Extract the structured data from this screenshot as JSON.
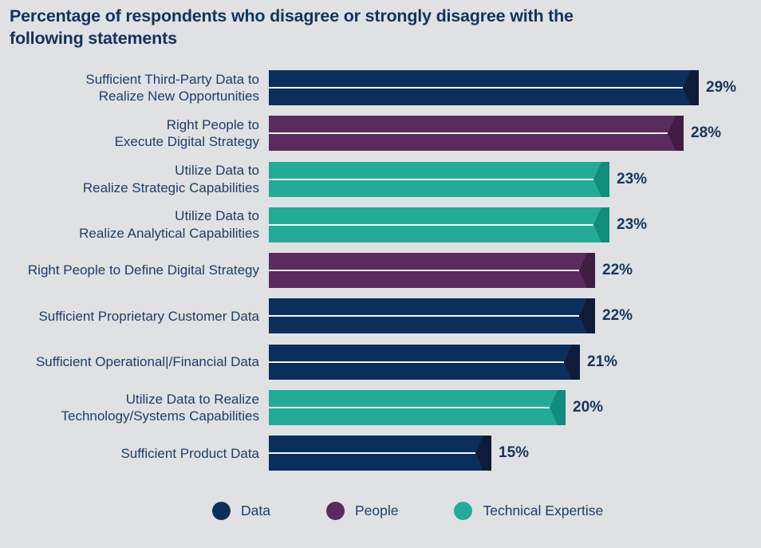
{
  "title": {
    "full": "Percentage of respondents who disagree or strongly disagree with the following statements",
    "line1": "Percentage of respondents who disagree or strongly disagree with the",
    "line2": "following statements"
  },
  "colors": {
    "background": "#dfe1e2",
    "title_text": "#13325f",
    "category_label_text": "#1e3d6d",
    "value_label_text": "#16355f",
    "bar_midline": "#f4f6f8",
    "data_navy": "#0b2f5b",
    "data_navy_cap": "#0e1c3a",
    "people_purple": "#5b2a5e",
    "people_purple_cap": "#411c45",
    "technical_teal": "#23ab98",
    "technical_teal_cap": "#108d7c"
  },
  "chart_data": {
    "type": "bar",
    "orientation": "horizontal",
    "title": "Percentage of respondents who disagree or strongly disagree with the following statements",
    "xlabel": "",
    "ylabel": "",
    "xlim": [
      0,
      29
    ],
    "grid": false,
    "value_suffix": "%",
    "legend_position": "bottom",
    "bars": [
      {
        "label_lines": [
          "Sufficient Third-Party Data to",
          "Realize New Opportunities"
        ],
        "value": 29,
        "group": "Data"
      },
      {
        "label_lines": [
          "Right People to",
          "Execute Digital Strategy"
        ],
        "value": 28,
        "group": "People"
      },
      {
        "label_lines": [
          "Utilize Data to",
          "Realize Strategic Capabilities"
        ],
        "value": 23,
        "group": "Technical Expertise"
      },
      {
        "label_lines": [
          "Utilize Data to",
          "Realize Analytical Capabilities"
        ],
        "value": 23,
        "group": "Technical Expertise"
      },
      {
        "label_lines": [
          "Right People to Define Digital Strategy"
        ],
        "value": 22,
        "group": "People"
      },
      {
        "label_lines": [
          "Sufficient Proprietary Customer Data"
        ],
        "value": 22,
        "group": "Data"
      },
      {
        "label_lines": [
          "Sufficient Operational|/Financial Data"
        ],
        "value": 21,
        "group": "Data"
      },
      {
        "label_lines": [
          "Utilize Data to Realize",
          "Technology/Systems Capabilities"
        ],
        "value": 20,
        "group": "Technical Expertise"
      },
      {
        "label_lines": [
          "Sufficient Product Data"
        ],
        "value": 15,
        "group": "Data"
      }
    ],
    "legend": [
      {
        "label": "Data",
        "color": "#0b2f5b",
        "cap_color": "#0e1c3a"
      },
      {
        "label": "People",
        "color": "#5b2a5e",
        "cap_color": "#411c45"
      },
      {
        "label": "Technical Expertise",
        "color": "#23ab98",
        "cap_color": "#108d7c"
      }
    ]
  }
}
